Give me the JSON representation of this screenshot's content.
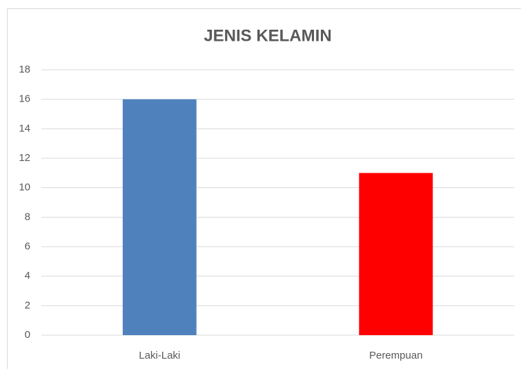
{
  "chart_data": {
    "type": "bar",
    "title": "JENIS KELAMIN",
    "categories": [
      "Laki-Laki",
      "Perempuan"
    ],
    "values": [
      16,
      11
    ],
    "colors": [
      "#4f81bd",
      "#ff0000"
    ],
    "ylim": [
      0,
      18
    ],
    "yticks": [
      0,
      2,
      4,
      6,
      8,
      10,
      12,
      14,
      16,
      18
    ],
    "grid": true
  }
}
